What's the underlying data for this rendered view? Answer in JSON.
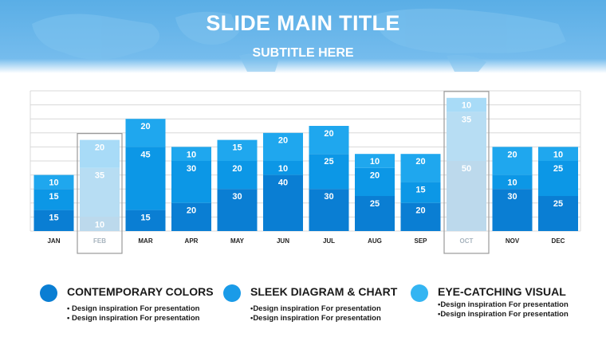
{
  "header": {
    "title": "SLIDE MAIN TITLE",
    "subtitle": "SUBTITLE HERE"
  },
  "colors": {
    "header_bg": "#5aaee6",
    "seg_bottom": "#0a7ed3",
    "seg_middle": "#0c97e6",
    "seg_top": "#1fa7ee",
    "highlight_bottom": "#bcd9ec",
    "highlight_middle": "#b7ddf3",
    "highlight_top": "#a8dbf7",
    "grid": "#d8d8d8",
    "highlight_label": "#a7b4be"
  },
  "chart_data": {
    "type": "bar",
    "stacked": true,
    "categories": [
      "JAN",
      "FEB",
      "MAR",
      "APR",
      "MAY",
      "JUN",
      "JUL",
      "AUG",
      "SEP",
      "OCT",
      "NOV",
      "DEC"
    ],
    "series": [
      {
        "values": [
          15,
          10,
          15,
          20,
          30,
          40,
          30,
          25,
          20,
          50,
          30,
          25
        ]
      },
      {
        "values": [
          15,
          35,
          45,
          30,
          20,
          10,
          25,
          20,
          15,
          35,
          10,
          25
        ]
      },
      {
        "values": [
          10,
          20,
          20,
          10,
          15,
          20,
          20,
          10,
          20,
          10,
          20,
          10
        ]
      }
    ],
    "highlighted_categories": [
      "FEB",
      "OCT"
    ],
    "ylim": [
      0,
      100
    ],
    "grid": true
  },
  "legend": [
    {
      "icon": "circle",
      "color": "#0a7ed3",
      "title": "CONTEMPORARY COLORS",
      "bullets": [
        "• Design inspiration For presentation",
        "• Design inspiration For presentation"
      ]
    },
    {
      "icon": "circle",
      "color": "#1a9be8",
      "title": "SLEEK DIAGRAM & CHART",
      "bullets": [
        "•Design inspiration For presentation",
        "•Design inspiration For presentation"
      ]
    },
    {
      "icon": "circle",
      "color": "#34b5f2",
      "title": "EYE-CATCHING VISUAL",
      "bullets": [
        "•Design inspiration For presentation",
        "•Design inspiration For presentation"
      ]
    }
  ]
}
